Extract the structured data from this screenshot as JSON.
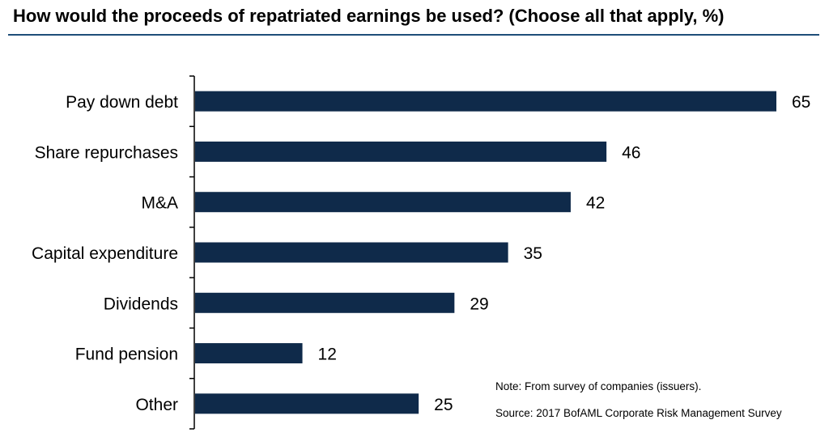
{
  "chart_data": {
    "type": "bar",
    "orientation": "horizontal",
    "title": "How would the proceeds of repatriated earnings be used? (Choose all that apply, %)",
    "categories": [
      "Pay down debt",
      "Share repurchases",
      "M&A",
      "Capital expenditure",
      "Dividends",
      "Fund pension",
      "Other"
    ],
    "values": [
      65,
      46,
      42,
      35,
      29,
      12,
      25
    ],
    "data_labels": [
      "65",
      "46",
      "42",
      "35",
      "29",
      "12",
      "25"
    ],
    "xlim": [
      0,
      65
    ],
    "grid": false,
    "legend": "none",
    "bar_color": "#0f2a4a",
    "note": "Note: From survey of companies (issuers).",
    "source": "Source: 2017 BofAML Corporate Risk Management Survey"
  }
}
